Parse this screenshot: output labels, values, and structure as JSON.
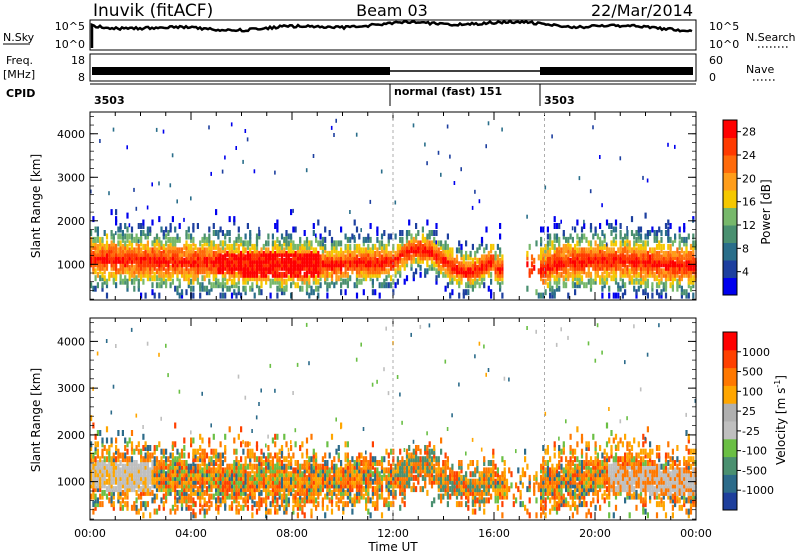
{
  "header": {
    "title_left": "Inuvik (fitACF)",
    "title_center": "Beam 03",
    "title_right": "22/Mar/2014"
  },
  "top_panels": {
    "nsky_label": "N.Sky",
    "nsearch_label": "N.Search",
    "noise_ticks": [
      "10^5",
      "10^0"
    ],
    "freq_label": "Freq.",
    "freq_unit": "[MHz]",
    "freq_ticks": [
      "18",
      "8"
    ],
    "nave_label": "Nave",
    "nave_ticks": [
      "60",
      "0"
    ],
    "cpid_label": "CPID",
    "cpid_segments": [
      {
        "label": "3503",
        "start_hour": 0,
        "end_hour": 12
      },
      {
        "label": "normal (fast) 151",
        "start_hour": 12,
        "end_hour": 18
      },
      {
        "label": "3503",
        "start_hour": 18,
        "end_hour": 24
      }
    ]
  },
  "colors": {
    "power_scale": [
      "#0000ee",
      "#1d3f9f",
      "#2a6e8a",
      "#4a9070",
      "#77b86b",
      "#f5c800",
      "#ff9d1a",
      "#ff6a0a",
      "#ff3a00",
      "#ff0000"
    ],
    "velocity_scale": [
      "#1e3f9c",
      "#2c6b8a",
      "#4a9070",
      "#6abf44",
      "#bfbfbf",
      "#b0b0b0",
      "#ffa600",
      "#ff7800",
      "#ff4000",
      "#ff0000"
    ]
  },
  "chart_data": [
    {
      "type": "heatmap",
      "ylabel": "Slant Range [km]",
      "xlabel": "Time UT",
      "x_ticks": [
        "00:00",
        "04:00",
        "08:00",
        "12:00",
        "16:00",
        "20:00",
        "00:00"
      ],
      "xlim": [
        0,
        24
      ],
      "ylim": [
        180,
        4500
      ],
      "y_ticks": [
        1000,
        2000,
        3000,
        4000
      ],
      "colorbar": {
        "label": "Power [dB]",
        "ticks": [
          4,
          8,
          12,
          16,
          20,
          24,
          28
        ],
        "range": [
          0,
          30
        ]
      }
    },
    {
      "type": "heatmap",
      "ylabel": "Slant Range [km]",
      "xlabel": "Time UT",
      "x_ticks": [
        "00:00",
        "04:00",
        "08:00",
        "12:00",
        "16:00",
        "20:00",
        "00:00"
      ],
      "xlim": [
        0,
        24
      ],
      "ylim": [
        180,
        4500
      ],
      "y_ticks": [
        1000,
        2000,
        3000,
        4000
      ],
      "colorbar": {
        "label": "Velocity [m s",
        "label_sup": "-1",
        "label_end": "]",
        "ticks": [
          "1000",
          "500",
          "100",
          "25",
          "-25",
          "-100",
          "-500",
          "-1000"
        ]
      }
    }
  ]
}
